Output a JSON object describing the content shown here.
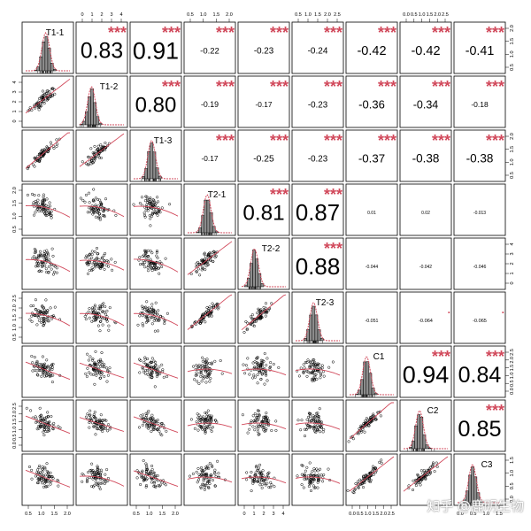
{
  "chart_data": {
    "type": "scatter",
    "variables": [
      "T1-1",
      "T1-2",
      "T1-3",
      "T2-1",
      "T2-2",
      "T2-3",
      "C1",
      "C2",
      "C3"
    ],
    "axis_ticks": {
      "top": {
        "T1-2": [
          0,
          1,
          2,
          3,
          4
        ],
        "T2-1": [
          0.5,
          1.0,
          1.5,
          2.0
        ],
        "T2-3": [
          0.5,
          1.0,
          1.5,
          2.0,
          2.5
        ],
        "C2": [
          0.0,
          0.5,
          1.0,
          1.5,
          2.0,
          2.5
        ]
      },
      "bottom": {
        "T1-1": [
          0.5,
          1.0,
          1.5,
          2.0
        ],
        "T1-3": [
          0.5,
          1.0,
          1.5,
          2.0
        ],
        "T2-2": [
          0,
          1,
          2,
          3,
          4
        ],
        "C1": [
          0.0,
          0.5,
          1.0,
          1.5,
          2.0,
          2.5
        ],
        "C3": [
          0.0,
          0.5,
          1.0,
          1.5
        ]
      },
      "left": {
        "T1-2": [
          0,
          1,
          2,
          3,
          4
        ],
        "T2-1": [
          0.5,
          1.0,
          1.5,
          2.0
        ],
        "T2-3": [
          0.5,
          1.0,
          1.5,
          2.0,
          2.5
        ],
        "C2": [
          0.0,
          0.5,
          1.0,
          1.5,
          2.0,
          2.5
        ]
      },
      "right": {
        "T1-1": [
          0.5,
          1.0,
          1.5,
          2.0
        ],
        "T1-3": [
          0.5,
          1.0,
          1.5,
          2.0
        ],
        "T2-2": [
          0,
          1,
          2,
          3,
          4
        ],
        "C1": [
          0.0,
          0.5,
          1.0,
          1.5,
          2.0,
          2.5
        ],
        "C3": [
          0.0,
          0.5,
          1.0,
          1.5
        ]
      }
    },
    "correlations": [
      {
        "row": "T1-1",
        "col": "T1-2",
        "r": "0.83",
        "stars": "***"
      },
      {
        "row": "T1-1",
        "col": "T1-3",
        "r": "0.91",
        "stars": "***"
      },
      {
        "row": "T1-1",
        "col": "T2-1",
        "r": "-0.22",
        "stars": "***"
      },
      {
        "row": "T1-1",
        "col": "T2-2",
        "r": "-0.23",
        "stars": "***"
      },
      {
        "row": "T1-1",
        "col": "T2-3",
        "r": "-0.24",
        "stars": "***"
      },
      {
        "row": "T1-1",
        "col": "C1",
        "r": "-0.42",
        "stars": "***"
      },
      {
        "row": "T1-1",
        "col": "C2",
        "r": "-0.42",
        "stars": "***"
      },
      {
        "row": "T1-1",
        "col": "C3",
        "r": "-0.41",
        "stars": "***"
      },
      {
        "row": "T1-2",
        "col": "T1-3",
        "r": "0.80",
        "stars": "***"
      },
      {
        "row": "T1-2",
        "col": "T2-1",
        "r": "-0.19",
        "stars": "***"
      },
      {
        "row": "T1-2",
        "col": "T2-2",
        "r": "-0.17",
        "stars": "***"
      },
      {
        "row": "T1-2",
        "col": "T2-3",
        "r": "-0.23",
        "stars": "***"
      },
      {
        "row": "T1-2",
        "col": "C1",
        "r": "-0.36",
        "stars": "***"
      },
      {
        "row": "T1-2",
        "col": "C2",
        "r": "-0.34",
        "stars": "***"
      },
      {
        "row": "T1-2",
        "col": "C3",
        "r": "-0.18",
        "stars": "***"
      },
      {
        "row": "T1-3",
        "col": "T2-1",
        "r": "-0.17",
        "stars": "***"
      },
      {
        "row": "T1-3",
        "col": "T2-2",
        "r": "-0.25",
        "stars": "***"
      },
      {
        "row": "T1-3",
        "col": "T2-3",
        "r": "-0.23",
        "stars": "***"
      },
      {
        "row": "T1-3",
        "col": "C1",
        "r": "-0.37",
        "stars": "***"
      },
      {
        "row": "T1-3",
        "col": "C2",
        "r": "-0.38",
        "stars": "***"
      },
      {
        "row": "T1-3",
        "col": "C3",
        "r": "-0.38",
        "stars": "***"
      },
      {
        "row": "T2-1",
        "col": "T2-2",
        "r": "0.81",
        "stars": "***"
      },
      {
        "row": "T2-1",
        "col": "T2-3",
        "r": "0.87",
        "stars": "***"
      },
      {
        "row": "T2-1",
        "col": "C1",
        "r": "0.01",
        "stars": ""
      },
      {
        "row": "T2-1",
        "col": "C2",
        "r": "0.02",
        "stars": ""
      },
      {
        "row": "T2-1",
        "col": "C3",
        "r": "-0.013",
        "stars": ""
      },
      {
        "row": "T2-2",
        "col": "T2-3",
        "r": "0.88",
        "stars": "***"
      },
      {
        "row": "T2-2",
        "col": "C1",
        "r": "-0.044",
        "stars": ""
      },
      {
        "row": "T2-2",
        "col": "C2",
        "r": "-0.042",
        "stars": ""
      },
      {
        "row": "T2-2",
        "col": "C3",
        "r": "-0.046",
        "stars": ""
      },
      {
        "row": "T2-3",
        "col": "C1",
        "r": "-0.051",
        "stars": ""
      },
      {
        "row": "T2-3",
        "col": "C2",
        "r": "-0.064",
        "stars": "."
      },
      {
        "row": "T2-3",
        "col": "C3",
        "r": "-0.065",
        "stars": "."
      },
      {
        "row": "C1",
        "col": "C2",
        "r": "0.94",
        "stars": "***"
      },
      {
        "row": "C1",
        "col": "C3",
        "r": "0.84",
        "stars": "***"
      },
      {
        "row": "C2",
        "col": "C3",
        "r": "0.85",
        "stars": "***"
      }
    ],
    "diagonal_type": "histogram-with-density",
    "lower_panel_type": "scatter-with-loess",
    "colors": {
      "stars": "#d1495b",
      "smooth": "#d1495b",
      "bars": "#8c8c8c",
      "points": "#000000"
    }
  },
  "watermark": "知乎 @鹿明生物"
}
